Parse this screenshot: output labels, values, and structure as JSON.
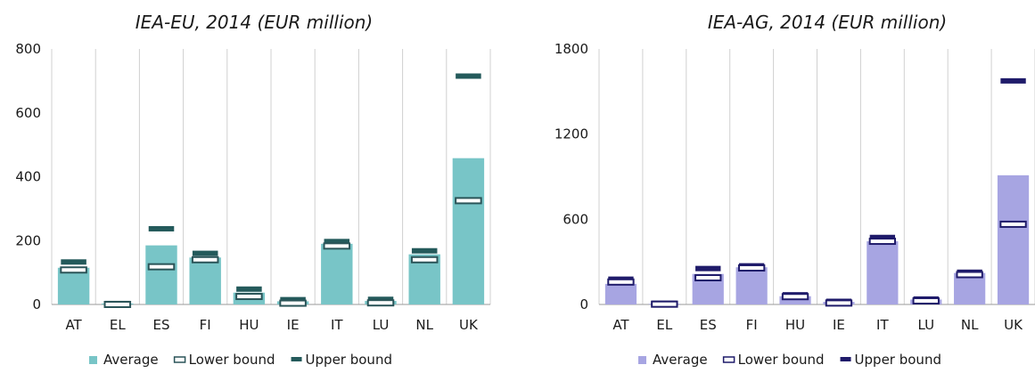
{
  "chart_data": [
    {
      "type": "bar",
      "title": "IEA-EU, 2014 (EUR million)",
      "categories": [
        "AT",
        "EL",
        "ES",
        "FI",
        "HU",
        "IE",
        "IT",
        "LU",
        "NL",
        "UK"
      ],
      "ylim": [
        0,
        800
      ],
      "yticks": [
        "0",
        "200",
        "400",
        "600",
        "800"
      ],
      "ytick_values": [
        0,
        200,
        400,
        600,
        800
      ],
      "grid": "vertical category separators",
      "legend": "bottom",
      "series": [
        {
          "name": "Average",
          "kind": "bar",
          "color": "#78c5c7",
          "values": [
            115,
            3,
            185,
            147,
            37,
            10,
            190,
            11,
            157,
            458
          ]
        },
        {
          "name": "Lower bound",
          "kind": "marker",
          "color": "#ffffff",
          "edge": "#2a5458",
          "values": [
            108,
            0,
            118,
            140,
            25,
            4,
            183,
            5,
            140,
            325
          ]
        },
        {
          "name": "Upper bound",
          "kind": "marker",
          "color": "#245a5b",
          "values": [
            133,
            3,
            237,
            160,
            48,
            15,
            197,
            16,
            168,
            715
          ]
        }
      ]
    },
    {
      "type": "bar",
      "title": "IEA-AG, 2014 (EUR million)",
      "categories": [
        "AT",
        "EL",
        "ES",
        "FI",
        "HU",
        "IE",
        "IT",
        "LU",
        "NL",
        "UK"
      ],
      "ylim": [
        0,
        1800
      ],
      "yticks": [
        "0",
        "600",
        "1200",
        "1800"
      ],
      "ytick_values": [
        0,
        600,
        1200,
        1800
      ],
      "grid": "vertical category separators",
      "legend": "bottom",
      "series": [
        {
          "name": "Average",
          "kind": "bar",
          "color": "#a7a5e2",
          "values": [
            145,
            5,
            215,
            262,
            58,
            18,
            445,
            35,
            222,
            910
          ]
        },
        {
          "name": "Lower bound",
          "kind": "marker",
          "color": "#ffffff",
          "edge": "#1f1b6a",
          "values": [
            158,
            2,
            188,
            257,
            55,
            10,
            445,
            25,
            210,
            565
          ]
        },
        {
          "name": "Upper bound",
          "kind": "marker",
          "color": "#1f1b6a",
          "values": [
            178,
            8,
            253,
            272,
            68,
            22,
            472,
            38,
            227,
            1575
          ]
        }
      ]
    }
  ]
}
